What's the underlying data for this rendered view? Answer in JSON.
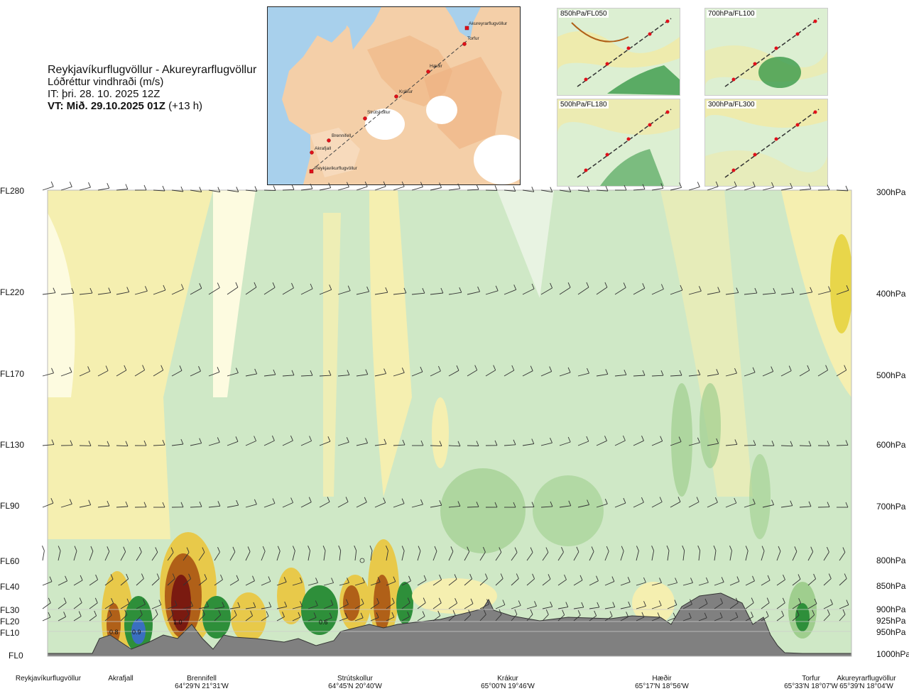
{
  "header": {
    "route": "Reykjavíkurflugvöllur - Akureyrarflugvöllur",
    "quantity": "Lóðréttur vindhraði (m/s)",
    "it": "IT: þri. 28. 10. 2025 12Z",
    "vt_bold": "VT: Mið. 29.10.2025 01Z",
    "vt_offset": "(+13 h)"
  },
  "main_map": {
    "waypoints": [
      "Akureyrarflugvöllur",
      "Torfur",
      "Hæðir",
      "Krákur",
      "Strútskollur",
      "Brennifell",
      "Akrafjall",
      "Reykjavíkurflugvöllur"
    ]
  },
  "mini_maps": [
    {
      "label": "850hPa/FL050"
    },
    {
      "label": "700hPa/FL100"
    },
    {
      "label": "500hPa/FL180"
    },
    {
      "label": "300hPa/FL300"
    }
  ],
  "flight_levels": [
    "FL280",
    "FL220",
    "FL170",
    "FL130",
    "FL90",
    "FL60",
    "FL40",
    "FL30",
    "FL20",
    "FL10",
    "FL0"
  ],
  "pressure_levels": [
    "300hPa",
    "400hPa",
    "500hPa",
    "600hPa",
    "700hPa",
    "800hPa",
    "850hPa",
    "900hPa",
    "925hPa",
    "950hPa",
    "1000hPa"
  ],
  "bottom_locations": [
    {
      "name": "Reykjavíkurflugvöllur",
      "coord": ""
    },
    {
      "name": "Akrafjall",
      "coord": ""
    },
    {
      "name": "Brennifell",
      "coord": "64°29'N 21°31'W"
    },
    {
      "name": "Strútskollur",
      "coord": "64°45'N 20°40'W"
    },
    {
      "name": "Krákur",
      "coord": "65°00'N 19°46'W"
    },
    {
      "name": "Hæðir",
      "coord": "65°17'N 18°56'W"
    },
    {
      "name": "Torfur",
      "coord": "65°33'N 18°07'W"
    },
    {
      "name": "Akureyrarflugvöllur",
      "coord": "65°39'N 18°04'W"
    }
  ],
  "contour_values": [
    "0.8",
    "0.9",
    "1.0",
    "0.6"
  ],
  "colors": {
    "updraft_light": "#cfe8c6",
    "updraft_mid": "#9fce8e",
    "updraft_strong": "#2e8f3a",
    "downdraft_light": "#f5efb0",
    "downdraft_mid": "#e8c94a",
    "downdraft_strong": "#b06018",
    "downdraft_extreme": "#7a1a10",
    "terrain": "#808080"
  }
}
